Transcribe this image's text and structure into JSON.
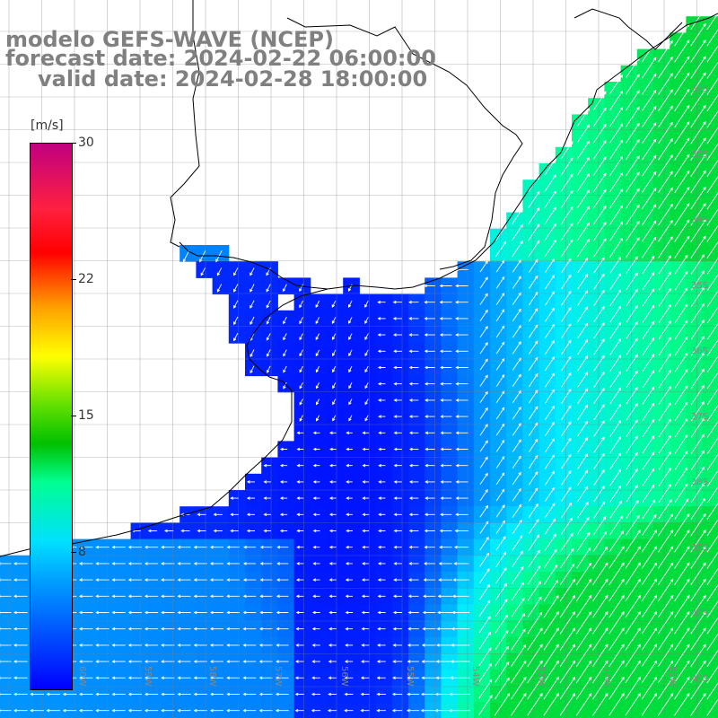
{
  "title": {
    "line1": "modelo GEFS-WAVE (NCEP)",
    "line2": "forecast date: 2024-02-22 06:00:00",
    "line3": "valid date: 2024-02-28 18:00:00"
  },
  "colorbar": {
    "unit": "[m/s]",
    "ticks": [
      {
        "label": "30",
        "value": 30
      },
      {
        "label": "22",
        "value": 22
      },
      {
        "label": "15",
        "value": 15
      },
      {
        "label": "8",
        "value": 8
      }
    ],
    "range": [
      0,
      30
    ]
  },
  "map": {
    "lat_labels": [
      "32S",
      "33S",
      "34S",
      "35S",
      "36S",
      "37S",
      "38S",
      "39S",
      "40S",
      "41S"
    ],
    "lon_labels": [
      "60W",
      "59W",
      "58W",
      "57W",
      "56W",
      "55W",
      "54W",
      "53W",
      "52W",
      "51W"
    ],
    "colors": {
      "land": "#ffffff",
      "coast": "#000000",
      "grid": "#808080",
      "arrow": "#ffffff",
      "weak": "#0020ff",
      "moderate": "#00b0ff",
      "strong": "#00ff80"
    },
    "variable": "wind speed and direction"
  }
}
